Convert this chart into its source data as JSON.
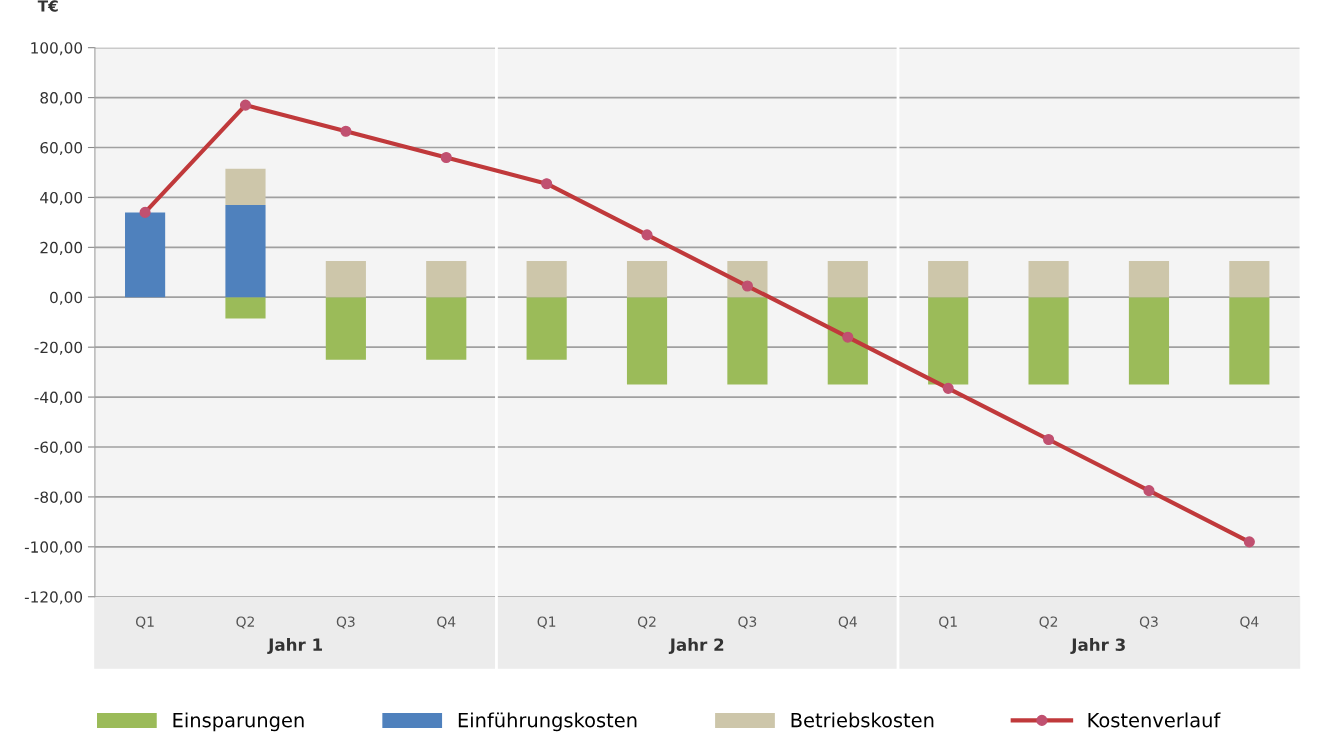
{
  "chart_data": {
    "type": "bar",
    "stacked": true,
    "ylabel": "T€",
    "categories": [
      "Q1",
      "Q2",
      "Q3",
      "Q4",
      "Q1",
      "Q2",
      "Q3",
      "Q4",
      "Q1",
      "Q2",
      "Q3",
      "Q4"
    ],
    "series": [
      {
        "name": "Einsparungen",
        "color": "#9bbb59",
        "values": [
          0,
          -8.5,
          -25,
          -25,
          -25,
          -35,
          -35,
          -35,
          -35,
          -35,
          -35,
          -35
        ]
      },
      {
        "name": "Einführungskosten",
        "color": "#4f81bd",
        "values": [
          34,
          37,
          0,
          0,
          0,
          0,
          0,
          0,
          0,
          0,
          0,
          0
        ]
      },
      {
        "name": "Betriebskosten",
        "color": "#cdc6aa",
        "values": [
          0,
          14.5,
          14.5,
          14.5,
          14.5,
          14.5,
          14.5,
          14.5,
          14.5,
          14.5,
          14.5,
          14.5
        ]
      },
      {
        "name": "Kostenverlauf",
        "type": "line",
        "color": "#c0393b",
        "marker": "circle",
        "values": [
          34,
          77,
          66.5,
          56,
          45.5,
          25,
          4.5,
          -16,
          -36.5,
          -57,
          -77.5,
          -98
        ]
      }
    ],
    "annotations": [
      "Jahr 1",
      "Jahr 2",
      "Jahr 3"
    ],
    "ylim": [
      -120,
      100
    ],
    "yticks": [
      {
        "value": -120,
        "label": "-120,00"
      },
      {
        "value": -100,
        "label": "-100,00"
      },
      {
        "value": -80,
        "label": "-80,00"
      },
      {
        "value": -60,
        "label": "-60,00"
      },
      {
        "value": -40,
        "label": "-40,00"
      },
      {
        "value": -20,
        "label": "-20,00"
      },
      {
        "value": 0,
        "label": "0,00"
      },
      {
        "value": 20,
        "label": "20,00"
      },
      {
        "value": 40,
        "label": "40,00"
      },
      {
        "value": 60,
        "label": "60,00"
      },
      {
        "value": 80,
        "label": "80,00"
      },
      {
        "value": 100,
        "label": "100,00"
      }
    ],
    "grid": "y",
    "legend": "bottom"
  }
}
